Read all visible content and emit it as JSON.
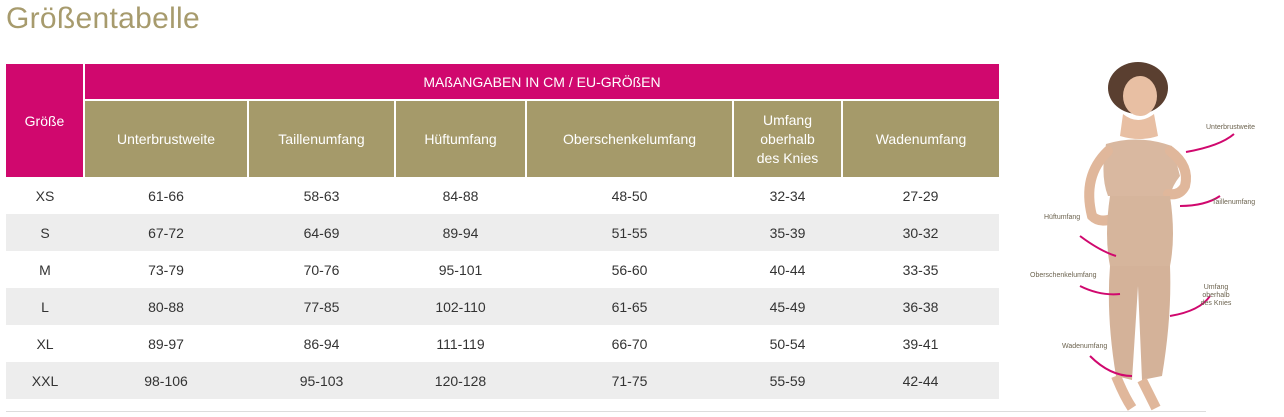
{
  "page": {
    "title": "Größentabelle"
  },
  "table": {
    "corner_header": "Größe",
    "group_header": "MAßANGABEN IN CM / EU-GRÖßEN",
    "columns": [
      "Unterbrustweite",
      "Taillenumfang",
      "Hüftumfang",
      "Oberschenkelumfang",
      "Umfang oberhalb des Knies",
      "Wadenumfang"
    ],
    "rows": [
      {
        "size": "XS",
        "values": [
          "61-66",
          "58-63",
          "84-88",
          "48-50",
          "32-34",
          "27-29"
        ]
      },
      {
        "size": "S",
        "values": [
          "67-72",
          "64-69",
          "89-94",
          "51-55",
          "35-39",
          "30-32"
        ]
      },
      {
        "size": "M",
        "values": [
          "73-79",
          "70-76",
          "95-101",
          "56-60",
          "40-44",
          "33-35"
        ]
      },
      {
        "size": "L",
        "values": [
          "80-88",
          "77-85",
          "102-110",
          "61-65",
          "45-49",
          "36-38"
        ]
      },
      {
        "size": "XL",
        "values": [
          "89-97",
          "86-94",
          "111-119",
          "66-70",
          "50-54",
          "39-41"
        ]
      },
      {
        "size": "XXL",
        "values": [
          "98-106",
          "95-103",
          "120-128",
          "71-75",
          "55-59",
          "42-44"
        ]
      }
    ]
  },
  "figure": {
    "labels": {
      "underbust": "Unterbrustweite",
      "waist": "Taillenumfang",
      "hip": "Hüftumfang",
      "thigh": "Oberschenkelumfang",
      "above_knee": "Umfang oberhalb des Knies",
      "calf": "Wadenumfang"
    }
  },
  "colors": {
    "title": "#a79b6d",
    "header_pink": "#d0086e",
    "header_gold": "#a59a6a",
    "row_alt": "#ededed"
  }
}
